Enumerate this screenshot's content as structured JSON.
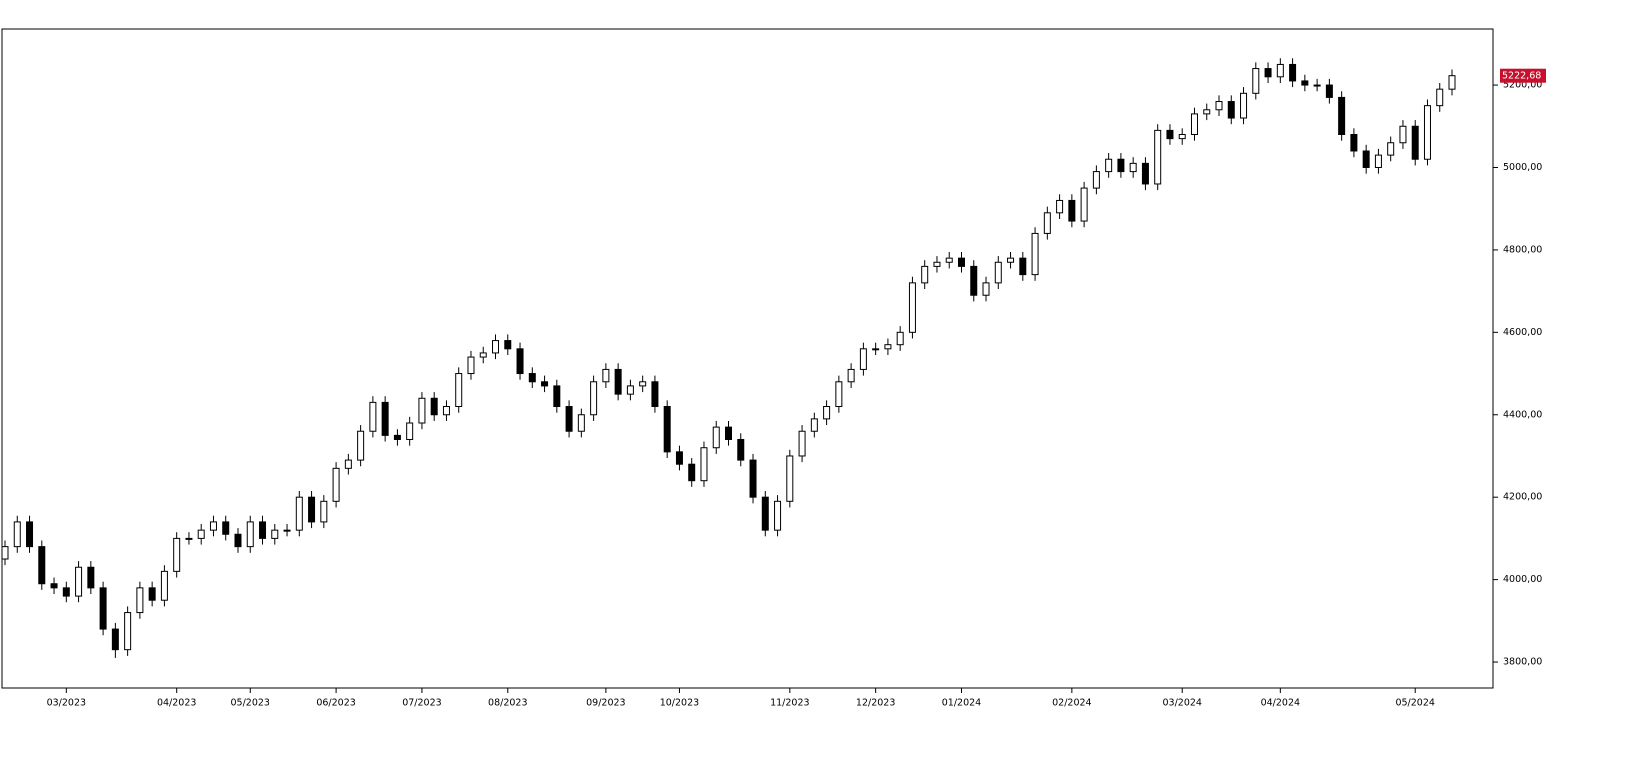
{
  "chart_data": {
    "type": "candlestick",
    "categories": [
      null,
      null,
      null,
      null,
      null,
      "03/2023",
      null,
      null,
      null,
      null,
      null,
      null,
      null,
      null,
      "04/2023",
      null,
      null,
      null,
      null,
      null,
      "05/2023",
      null,
      null,
      null,
      null,
      null,
      null,
      "06/2023",
      null,
      null,
      null,
      null,
      null,
      null,
      "07/2023",
      null,
      null,
      null,
      null,
      null,
      null,
      "08/2023",
      null,
      null,
      null,
      null,
      null,
      null,
      null,
      "09/2023",
      null,
      null,
      null,
      null,
      null,
      "10/2023",
      null,
      null,
      null,
      null,
      null,
      null,
      null,
      null,
      "11/2023",
      null,
      null,
      null,
      null,
      null,
      null,
      "12/2023",
      null,
      null,
      null,
      null,
      null,
      null,
      "01/2024",
      null,
      null,
      null,
      null,
      null,
      null,
      null,
      null,
      "02/2024",
      null,
      null,
      null,
      null,
      null,
      null,
      null,
      null,
      "03/2024",
      null,
      null,
      null,
      null,
      null,
      null,
      null,
      "04/2024",
      null,
      null,
      null,
      null,
      null,
      null,
      null,
      null,
      null,
      null,
      "05/2024",
      null,
      null,
      null
    ],
    "open": [
      4050,
      4080,
      4140,
      4080,
      3990,
      3980,
      3960,
      4030,
      3980,
      3880,
      3830,
      3920,
      3980,
      3950,
      4020,
      4100,
      4100,
      4120,
      4140,
      4110,
      4080,
      4140,
      4100,
      4120,
      4120,
      4200,
      4140,
      4190,
      4270,
      4290,
      4360,
      4430,
      4350,
      4340,
      4380,
      4440,
      4400,
      4420,
      4500,
      4540,
      4550,
      4580,
      4560,
      4500,
      4480,
      4470,
      4420,
      4360,
      4400,
      4480,
      4510,
      4450,
      4470,
      4480,
      4420,
      4310,
      4280,
      4240,
      4320,
      4370,
      4340,
      4290,
      4200,
      4120,
      4190,
      4300,
      4360,
      4390,
      4420,
      4480,
      4510,
      4560,
      4560,
      4570,
      4600,
      4720,
      4760,
      4770,
      4780,
      4760,
      4690,
      4720,
      4770,
      4780,
      4740,
      4840,
      4890,
      4920,
      4870,
      4950,
      4990,
      5020,
      4990,
      5010,
      4960,
      5090,
      5070,
      5080,
      5130,
      5140,
      5160,
      5120,
      5180,
      5240,
      5220,
      5250,
      5210,
      5200,
      5200,
      5170,
      5080,
      5040,
      5000,
      5030,
      5060,
      5100,
      5020,
      5150,
      5190
    ],
    "high": [
      4095,
      4155,
      4155,
      4095,
      4005,
      3995,
      4045,
      4045,
      3995,
      3895,
      3935,
      3995,
      3995,
      4035,
      4115,
      4115,
      4135,
      4155,
      4155,
      4125,
      4155,
      4155,
      4135,
      4135,
      4215,
      4215,
      4205,
      4285,
      4305,
      4375,
      4445,
      4445,
      4365,
      4395,
      4455,
      4455,
      4435,
      4515,
      4555,
      4565,
      4595,
      4595,
      4575,
      4515,
      4495,
      4485,
      4435,
      4415,
      4495,
      4525,
      4525,
      4485,
      4495,
      4495,
      4435,
      4325,
      4295,
      4335,
      4385,
      4385,
      4355,
      4305,
      4215,
      4205,
      4315,
      4375,
      4405,
      4435,
      4495,
      4525,
      4575,
      4575,
      4585,
      4615,
      4735,
      4775,
      4785,
      4795,
      4795,
      4775,
      4735,
      4785,
      4795,
      4795,
      4855,
      4905,
      4935,
      4935,
      4965,
      5005,
      5035,
      5035,
      5025,
      5025,
      5105,
      5105,
      5095,
      5145,
      5155,
      5175,
      5175,
      5195,
      5255,
      5255,
      5265,
      5265,
      5225,
      5215,
      5215,
      5185,
      5095,
      5055,
      5045,
      5075,
      5115,
      5115,
      5165,
      5205,
      5237.68
    ],
    "low": [
      4035,
      4065,
      4065,
      3975,
      3965,
      3945,
      3945,
      3965,
      3865,
      3810,
      3815,
      3905,
      3935,
      3935,
      4005,
      4085,
      4085,
      4105,
      4095,
      4065,
      4065,
      4085,
      4085,
      4105,
      4105,
      4125,
      4125,
      4175,
      4255,
      4275,
      4345,
      4335,
      4325,
      4325,
      4365,
      4385,
      4385,
      4405,
      4485,
      4525,
      4535,
      4545,
      4485,
      4465,
      4455,
      4405,
      4345,
      4345,
      4385,
      4465,
      4435,
      4435,
      4455,
      4405,
      4295,
      4265,
      4225,
      4225,
      4305,
      4325,
      4275,
      4185,
      4105,
      4105,
      4175,
      4285,
      4345,
      4375,
      4405,
      4465,
      4495,
      4545,
      4545,
      4555,
      4585,
      4705,
      4745,
      4755,
      4745,
      4675,
      4675,
      4705,
      4755,
      4725,
      4725,
      4825,
      4875,
      4855,
      4855,
      4935,
      4975,
      4975,
      4975,
      4945,
      4945,
      5055,
      5055,
      5065,
      5115,
      5125,
      5105,
      5105,
      5165,
      5205,
      5205,
      5195,
      5185,
      5185,
      5155,
      5065,
      5025,
      4985,
      4985,
      5015,
      5045,
      5005,
      5005,
      5135,
      5175
    ],
    "close": [
      4080,
      4140,
      4080,
      3990,
      3980,
      3960,
      4030,
      3980,
      3880,
      3830,
      3920,
      3980,
      3950,
      4020,
      4100,
      4100,
      4120,
      4140,
      4110,
      4080,
      4140,
      4100,
      4120,
      4120,
      4200,
      4140,
      4190,
      4270,
      4290,
      4360,
      4430,
      4350,
      4340,
      4380,
      4440,
      4400,
      4420,
      4500,
      4540,
      4550,
      4580,
      4560,
      4500,
      4480,
      4470,
      4420,
      4360,
      4400,
      4480,
      4510,
      4450,
      4470,
      4480,
      4420,
      4310,
      4280,
      4240,
      4320,
      4370,
      4340,
      4290,
      4200,
      4120,
      4190,
      4300,
      4360,
      4390,
      4420,
      4480,
      4510,
      4560,
      4560,
      4570,
      4600,
      4720,
      4760,
      4770,
      4780,
      4760,
      4690,
      4720,
      4770,
      4780,
      4740,
      4840,
      4890,
      4920,
      4870,
      4950,
      4990,
      5020,
      4990,
      5010,
      4960,
      5090,
      5070,
      5080,
      5130,
      5140,
      5160,
      5120,
      5180,
      5240,
      5220,
      5250,
      5210,
      5200,
      5200,
      5170,
      5080,
      5040,
      5000,
      5030,
      5060,
      5100,
      5020,
      5150,
      5190,
      5222.68
    ],
    "up_color": "#ffffff",
    "down_color": "#000000",
    "last_color": "#c8102e",
    "ylim": [
      3737,
      5336
    ],
    "yticks": [
      {
        "value": 3800,
        "label": "3800,00"
      },
      {
        "value": 4000,
        "label": "4000,00"
      },
      {
        "value": 4200,
        "label": "4200,00"
      },
      {
        "value": 4400,
        "label": "4400,00"
      },
      {
        "value": 4600,
        "label": "4600,00"
      },
      {
        "value": 4800,
        "label": "4800,00"
      },
      {
        "value": 5000,
        "label": "5000,00"
      },
      {
        "value": 5200,
        "label": "5200,00"
      }
    ],
    "last_price": {
      "value": 5222.68,
      "label": "5222,68"
    }
  }
}
